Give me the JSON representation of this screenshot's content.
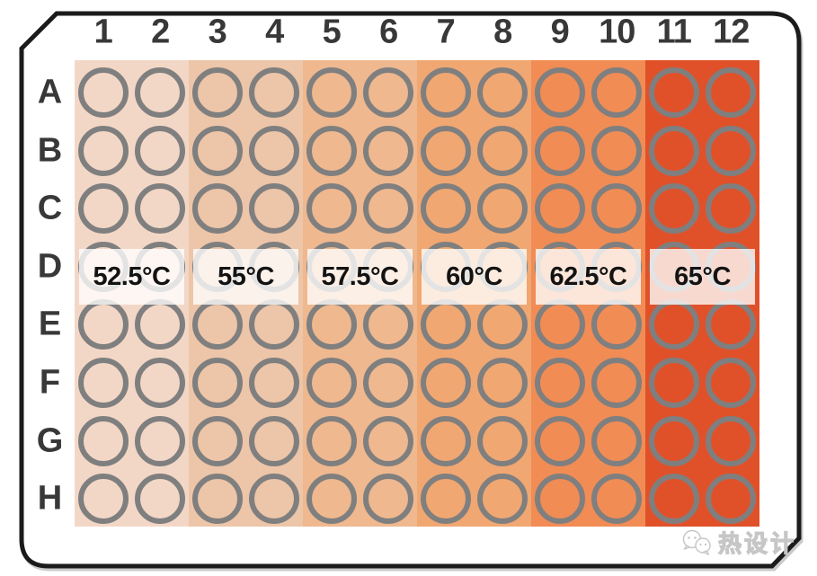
{
  "plate": {
    "column_labels": [
      "1",
      "2",
      "3",
      "4",
      "5",
      "6",
      "7",
      "8",
      "9",
      "10",
      "11",
      "12"
    ],
    "row_labels": [
      "A",
      "B",
      "C",
      "D",
      "E",
      "F",
      "G",
      "H"
    ],
    "temperature_bands": [
      {
        "label": "52.5°C",
        "color": "#f3d7c6",
        "columns": "1-2"
      },
      {
        "label": "55°C",
        "color": "#edc5a8",
        "columns": "3-4"
      },
      {
        "label": "57.5°C",
        "color": "#efb88f",
        "columns": "5-6"
      },
      {
        "label": "60°C",
        "color": "#f1a771",
        "columns": "7-8"
      },
      {
        "label": "62.5°C",
        "color": "#f18c55",
        "columns": "9-10"
      },
      {
        "label": "65°C",
        "color": "#e0512a",
        "columns": "11-12"
      }
    ],
    "colors": {
      "outline": "#1b1b1b",
      "well_stroke": "#7f7f7f",
      "label_text": "#383838",
      "overlay_bg": "rgba(255,255,255,0.78)"
    }
  },
  "watermark": {
    "text": "热设计",
    "icon": "wechat-bubbles-icon"
  }
}
